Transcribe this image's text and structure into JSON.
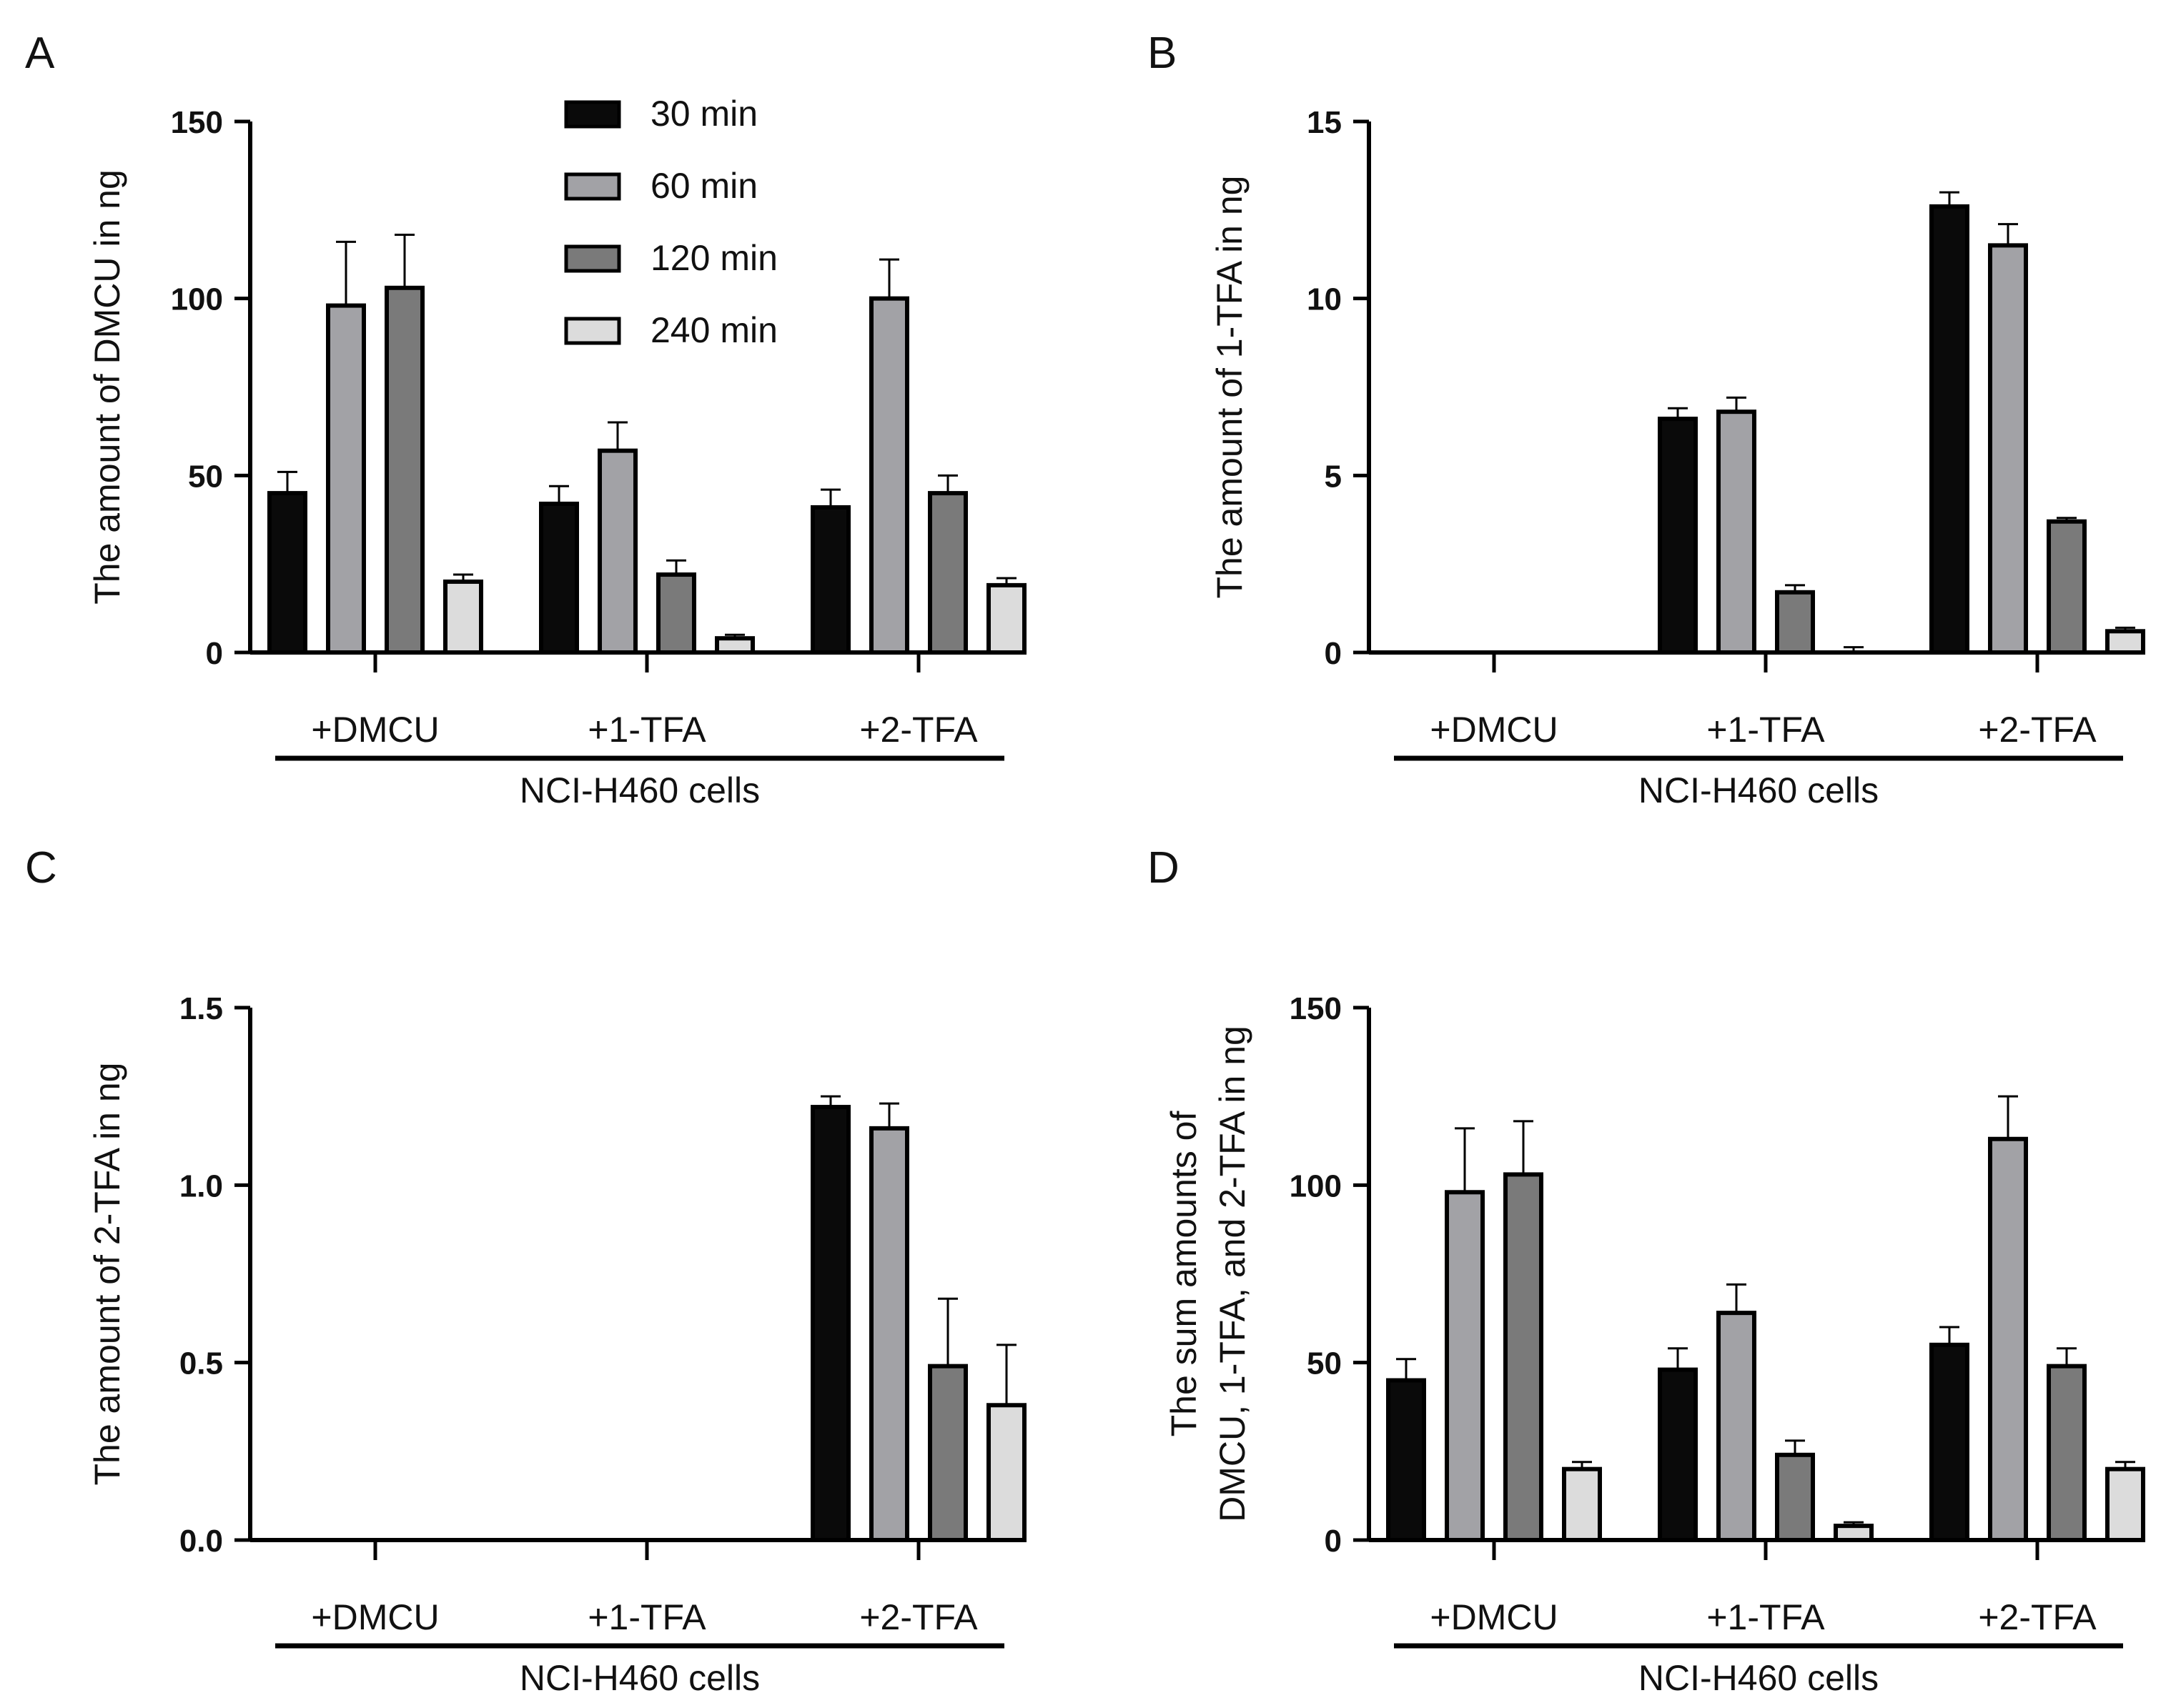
{
  "colors": {
    "series": [
      "#0a0a0a",
      "#a2a2a6",
      "#7a7a7a",
      "#dcdcdc"
    ],
    "edge": "#000000"
  },
  "chart_data": [
    {
      "panel": "A",
      "type": "bar",
      "ylabel": [
        "The amount of DMCU in ng"
      ],
      "xgroup_label": "NCI-H460 cells",
      "categories": [
        "+DMCU",
        "+1-TFA",
        "+2-TFA"
      ],
      "ylim": [
        0,
        150
      ],
      "yticks": [
        "0",
        "50",
        "100",
        "150"
      ],
      "legend_position": "top-center",
      "series": [
        {
          "name": "30 min",
          "values": [
            45,
            42,
            41
          ],
          "errors": [
            6,
            5,
            5
          ]
        },
        {
          "name": "60 min",
          "values": [
            98,
            57,
            100
          ],
          "errors": [
            18,
            8,
            11
          ]
        },
        {
          "name": "120 min",
          "values": [
            103,
            22,
            45
          ],
          "errors": [
            15,
            4,
            5
          ]
        },
        {
          "name": "240 min",
          "values": [
            20,
            4,
            19
          ],
          "errors": [
            2,
            1,
            2
          ]
        }
      ]
    },
    {
      "panel": "B",
      "type": "bar",
      "ylabel": [
        "The amount of 1-TFA in ng"
      ],
      "xgroup_label": "NCI-H460 cells",
      "categories": [
        "+DMCU",
        "+1-TFA",
        "+2-TFA"
      ],
      "ylim": [
        0,
        15
      ],
      "yticks": [
        "0",
        "5",
        "10",
        "15"
      ],
      "series": [
        {
          "name": "30 min",
          "values": [
            0,
            6.6,
            12.6
          ],
          "errors": [
            0,
            0.3,
            0.4
          ]
        },
        {
          "name": "60 min",
          "values": [
            0,
            6.8,
            11.5
          ],
          "errors": [
            0,
            0.4,
            0.6
          ]
        },
        {
          "name": "120 min",
          "values": [
            0,
            1.7,
            3.7
          ],
          "errors": [
            0,
            0.2,
            0.1
          ]
        },
        {
          "name": "240 min",
          "values": [
            0,
            0,
            0.6
          ],
          "errors": [
            0,
            0.15,
            0.1
          ]
        }
      ]
    },
    {
      "panel": "C",
      "type": "bar",
      "ylabel": [
        "The amount of 2-TFA in ng"
      ],
      "xgroup_label": "NCI-H460 cells",
      "categories": [
        "+DMCU",
        "+1-TFA",
        "+2-TFA"
      ],
      "ylim": [
        0,
        1.5
      ],
      "yticks": [
        "0.0",
        "0.5",
        "1.0",
        "1.5"
      ],
      "series": [
        {
          "name": "30 min",
          "values": [
            0,
            0,
            1.22
          ],
          "errors": [
            0,
            0,
            0.03
          ]
        },
        {
          "name": "60 min",
          "values": [
            0,
            0,
            1.16
          ],
          "errors": [
            0,
            0,
            0.07
          ]
        },
        {
          "name": "120 min",
          "values": [
            0,
            0,
            0.49
          ],
          "errors": [
            0,
            0,
            0.19
          ]
        },
        {
          "name": "240 min",
          "values": [
            0,
            0,
            0.38
          ],
          "errors": [
            0,
            0,
            0.17
          ]
        }
      ]
    },
    {
      "panel": "D",
      "type": "bar",
      "ylabel": [
        "The sum amounts of",
        "DMCU, 1-TFA, and 2-TFA in ng"
      ],
      "xgroup_label": "NCI-H460 cells",
      "categories": [
        "+DMCU",
        "+1-TFA",
        "+2-TFA"
      ],
      "ylim": [
        0,
        150
      ],
      "yticks": [
        "0",
        "50",
        "100",
        "150"
      ],
      "series": [
        {
          "name": "30 min",
          "values": [
            45,
            48,
            55
          ],
          "errors": [
            6,
            6,
            5
          ]
        },
        {
          "name": "60 min",
          "values": [
            98,
            64,
            113
          ],
          "errors": [
            18,
            8,
            12
          ]
        },
        {
          "name": "120 min",
          "values": [
            103,
            24,
            49
          ],
          "errors": [
            15,
            4,
            5
          ]
        },
        {
          "name": "240 min",
          "values": [
            20,
            4,
            20
          ],
          "errors": [
            2,
            1,
            2
          ]
        }
      ]
    }
  ]
}
